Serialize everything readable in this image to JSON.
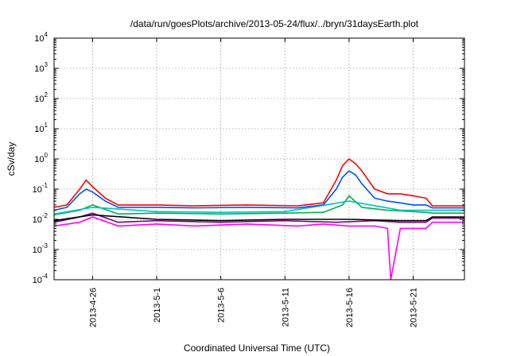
{
  "chart_data": {
    "type": "line",
    "title": "/data/run/goesPlots/archive/2013-05-24/flux/../bryn/31daysEarth.plot",
    "xlabel": "Coordinated Universal Time (UTC)",
    "ylabel": "cSv/day",
    "yscale": "log",
    "ylim": [
      0.0001,
      10000
    ],
    "xlim": [
      "2013-04-23",
      "2013-05-25"
    ],
    "grid": true,
    "legend": "none",
    "x_ticks": [
      {
        "date": "2013-04-26",
        "label": "2013-4-26"
      },
      {
        "date": "2013-05-01",
        "label": "2013-5-1"
      },
      {
        "date": "2013-05-06",
        "label": "2013-5-6"
      },
      {
        "date": "2013-05-11",
        "label": "2013-5-11"
      },
      {
        "date": "2013-05-16",
        "label": "2013-5-16"
      },
      {
        "date": "2013-05-21",
        "label": "2013-5-21"
      }
    ],
    "y_ticks": [
      {
        "value": 0.0001,
        "base": "10",
        "exp": "-4"
      },
      {
        "value": 0.001,
        "base": "10",
        "exp": "-3"
      },
      {
        "value": 0.01,
        "base": "10",
        "exp": "-2"
      },
      {
        "value": 0.1,
        "base": "10",
        "exp": "-1"
      },
      {
        "value": 1,
        "base": "10",
        "exp": "0"
      },
      {
        "value": 10,
        "base": "10",
        "exp": "1"
      },
      {
        "value": 100,
        "base": "10",
        "exp": "2"
      },
      {
        "value": 1000,
        "base": "10",
        "exp": "3"
      },
      {
        "value": 10000,
        "base": "10",
        "exp": "4"
      }
    ],
    "series": [
      {
        "color": "#ff00ff",
        "x": [
          "2013-04-23",
          "2013-04-25",
          "2013-04-26",
          "2013-04-28",
          "2013-05-01",
          "2013-05-04",
          "2013-05-08",
          "2013-05-12",
          "2013-05-14",
          "2013-05-16",
          "2013-05-18",
          "2013-05-19",
          "2013-05-19 06:00",
          "2013-05-20",
          "2013-05-22",
          "2013-05-22 12:00",
          "2013-05-25"
        ],
        "y": [
          0.006,
          0.008,
          0.012,
          0.006,
          0.007,
          0.006,
          0.007,
          0.006,
          0.007,
          0.006,
          0.006,
          0.005,
          0.0001,
          0.005,
          0.005,
          0.008,
          0.008
        ]
      },
      {
        "color": "#800080",
        "x": [
          "2013-04-23",
          "2013-04-25",
          "2013-04-26",
          "2013-04-28",
          "2013-05-01",
          "2013-05-06",
          "2013-05-11",
          "2013-05-15",
          "2013-05-18",
          "2013-05-20",
          "2013-05-22",
          "2013-05-22 12:00",
          "2013-05-25"
        ],
        "y": [
          0.008,
          0.012,
          0.016,
          0.008,
          0.009,
          0.008,
          0.009,
          0.008,
          0.009,
          0.008,
          0.008,
          0.011,
          0.011
        ]
      },
      {
        "color": "#000000",
        "x": [
          "2013-04-23",
          "2013-04-26",
          "2013-05-01",
          "2013-05-06",
          "2013-05-11",
          "2013-05-16",
          "2013-05-20",
          "2013-05-22",
          "2013-05-22 12:00",
          "2013-05-25"
        ],
        "y": [
          0.009,
          0.014,
          0.01,
          0.009,
          0.01,
          0.01,
          0.009,
          0.009,
          0.012,
          0.012
        ]
      },
      {
        "color": "#00b050",
        "x": [
          "2013-04-23",
          "2013-04-25",
          "2013-04-26",
          "2013-04-28",
          "2013-05-01",
          "2013-05-06",
          "2013-05-11",
          "2013-05-14",
          "2013-05-15 12:00",
          "2013-05-16",
          "2013-05-17",
          "2013-05-19",
          "2013-05-21",
          "2013-05-22",
          "2013-05-22 12:00",
          "2013-05-25"
        ],
        "y": [
          0.014,
          0.02,
          0.03,
          0.015,
          0.016,
          0.015,
          0.016,
          0.017,
          0.03,
          0.06,
          0.025,
          0.02,
          0.018,
          0.017,
          0.016,
          0.016
        ]
      },
      {
        "color": "#00c0c0",
        "x": [
          "2013-04-23",
          "2013-04-26",
          "2013-05-01",
          "2013-05-06",
          "2013-05-11",
          "2013-05-16",
          "2013-05-20",
          "2013-05-22",
          "2013-05-22 12:00",
          "2013-05-25"
        ],
        "y": [
          0.015,
          0.025,
          0.018,
          0.017,
          0.018,
          0.04,
          0.02,
          0.02,
          0.02,
          0.02
        ]
      },
      {
        "color": "#ff0000",
        "x": [
          "2013-04-23",
          "2013-04-24",
          "2013-04-25",
          "2013-04-25 12:00",
          "2013-04-26",
          "2013-04-27",
          "2013-04-28",
          "2013-05-01",
          "2013-05-04",
          "2013-05-08",
          "2013-05-12",
          "2013-05-14",
          "2013-05-15",
          "2013-05-15 12:00",
          "2013-05-16",
          "2013-05-16 12:00",
          "2013-05-17",
          "2013-05-17 12:00",
          "2013-05-18",
          "2013-05-19",
          "2013-05-20",
          "2013-05-21",
          "2013-05-22",
          "2013-05-22 12:00",
          "2013-05-25"
        ],
        "y": [
          0.025,
          0.03,
          0.1,
          0.2,
          0.12,
          0.05,
          0.03,
          0.03,
          0.028,
          0.03,
          0.028,
          0.035,
          0.2,
          0.6,
          1.0,
          0.7,
          0.4,
          0.2,
          0.1,
          0.07,
          0.07,
          0.06,
          0.05,
          0.028,
          0.028
        ]
      },
      {
        "color": "#0050ff",
        "x": [
          "2013-04-23",
          "2013-04-24",
          "2013-04-25",
          "2013-04-25 12:00",
          "2013-04-26",
          "2013-04-27",
          "2013-04-28",
          "2013-05-01",
          "2013-05-04",
          "2013-05-08",
          "2013-05-12",
          "2013-05-14",
          "2013-05-15",
          "2013-05-15 12:00",
          "2013-05-16",
          "2013-05-16 12:00",
          "2013-05-17",
          "2013-05-18",
          "2013-05-19",
          "2013-05-20",
          "2013-05-21",
          "2013-05-22",
          "2013-05-22 12:00",
          "2013-05-25"
        ],
        "y": [
          0.02,
          0.025,
          0.07,
          0.1,
          0.08,
          0.04,
          0.025,
          0.025,
          0.024,
          0.025,
          0.024,
          0.03,
          0.1,
          0.25,
          0.4,
          0.3,
          0.15,
          0.05,
          0.04,
          0.035,
          0.03,
          0.03,
          0.024,
          0.024
        ]
      }
    ]
  }
}
